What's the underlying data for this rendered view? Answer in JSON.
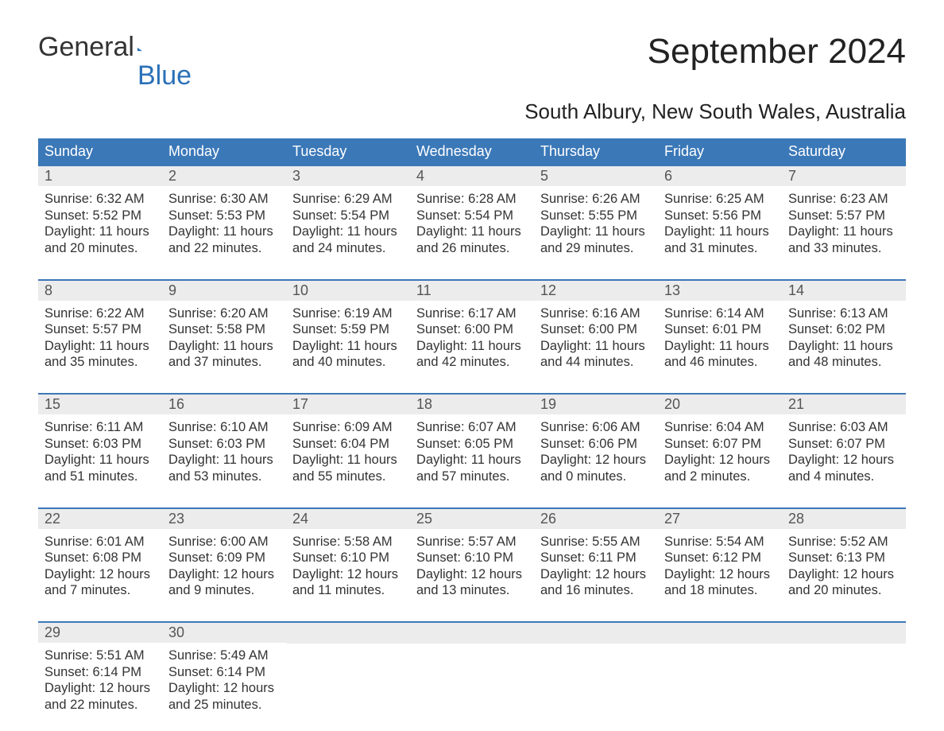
{
  "logo": {
    "general": "General",
    "blue": "Blue"
  },
  "title": "September 2024",
  "subtitle": "South Albury, New South Wales, Australia",
  "colors": {
    "header_bg": "#3b78b8",
    "header_text": "#ffffff",
    "daynum_bg": "#ececec",
    "daynum_text": "#555555",
    "body_text": "#333333",
    "rule": "#3b78b8",
    "logo_blue": "#2b71b8",
    "page_bg": "#ffffff"
  },
  "dayNames": [
    "Sunday",
    "Monday",
    "Tuesday",
    "Wednesday",
    "Thursday",
    "Friday",
    "Saturday"
  ],
  "weeks": [
    [
      {
        "n": "1",
        "sunrise": "Sunrise: 6:32 AM",
        "sunset": "Sunset: 5:52 PM",
        "d1": "Daylight: 11 hours",
        "d2": "and 20 minutes."
      },
      {
        "n": "2",
        "sunrise": "Sunrise: 6:30 AM",
        "sunset": "Sunset: 5:53 PM",
        "d1": "Daylight: 11 hours",
        "d2": "and 22 minutes."
      },
      {
        "n": "3",
        "sunrise": "Sunrise: 6:29 AM",
        "sunset": "Sunset: 5:54 PM",
        "d1": "Daylight: 11 hours",
        "d2": "and 24 minutes."
      },
      {
        "n": "4",
        "sunrise": "Sunrise: 6:28 AM",
        "sunset": "Sunset: 5:54 PM",
        "d1": "Daylight: 11 hours",
        "d2": "and 26 minutes."
      },
      {
        "n": "5",
        "sunrise": "Sunrise: 6:26 AM",
        "sunset": "Sunset: 5:55 PM",
        "d1": "Daylight: 11 hours",
        "d2": "and 29 minutes."
      },
      {
        "n": "6",
        "sunrise": "Sunrise: 6:25 AM",
        "sunset": "Sunset: 5:56 PM",
        "d1": "Daylight: 11 hours",
        "d2": "and 31 minutes."
      },
      {
        "n": "7",
        "sunrise": "Sunrise: 6:23 AM",
        "sunset": "Sunset: 5:57 PM",
        "d1": "Daylight: 11 hours",
        "d2": "and 33 minutes."
      }
    ],
    [
      {
        "n": "8",
        "sunrise": "Sunrise: 6:22 AM",
        "sunset": "Sunset: 5:57 PM",
        "d1": "Daylight: 11 hours",
        "d2": "and 35 minutes."
      },
      {
        "n": "9",
        "sunrise": "Sunrise: 6:20 AM",
        "sunset": "Sunset: 5:58 PM",
        "d1": "Daylight: 11 hours",
        "d2": "and 37 minutes."
      },
      {
        "n": "10",
        "sunrise": "Sunrise: 6:19 AM",
        "sunset": "Sunset: 5:59 PM",
        "d1": "Daylight: 11 hours",
        "d2": "and 40 minutes."
      },
      {
        "n": "11",
        "sunrise": "Sunrise: 6:17 AM",
        "sunset": "Sunset: 6:00 PM",
        "d1": "Daylight: 11 hours",
        "d2": "and 42 minutes."
      },
      {
        "n": "12",
        "sunrise": "Sunrise: 6:16 AM",
        "sunset": "Sunset: 6:00 PM",
        "d1": "Daylight: 11 hours",
        "d2": "and 44 minutes."
      },
      {
        "n": "13",
        "sunrise": "Sunrise: 6:14 AM",
        "sunset": "Sunset: 6:01 PM",
        "d1": "Daylight: 11 hours",
        "d2": "and 46 minutes."
      },
      {
        "n": "14",
        "sunrise": "Sunrise: 6:13 AM",
        "sunset": "Sunset: 6:02 PM",
        "d1": "Daylight: 11 hours",
        "d2": "and 48 minutes."
      }
    ],
    [
      {
        "n": "15",
        "sunrise": "Sunrise: 6:11 AM",
        "sunset": "Sunset: 6:03 PM",
        "d1": "Daylight: 11 hours",
        "d2": "and 51 minutes."
      },
      {
        "n": "16",
        "sunrise": "Sunrise: 6:10 AM",
        "sunset": "Sunset: 6:03 PM",
        "d1": "Daylight: 11 hours",
        "d2": "and 53 minutes."
      },
      {
        "n": "17",
        "sunrise": "Sunrise: 6:09 AM",
        "sunset": "Sunset: 6:04 PM",
        "d1": "Daylight: 11 hours",
        "d2": "and 55 minutes."
      },
      {
        "n": "18",
        "sunrise": "Sunrise: 6:07 AM",
        "sunset": "Sunset: 6:05 PM",
        "d1": "Daylight: 11 hours",
        "d2": "and 57 minutes."
      },
      {
        "n": "19",
        "sunrise": "Sunrise: 6:06 AM",
        "sunset": "Sunset: 6:06 PM",
        "d1": "Daylight: 12 hours",
        "d2": "and 0 minutes."
      },
      {
        "n": "20",
        "sunrise": "Sunrise: 6:04 AM",
        "sunset": "Sunset: 6:07 PM",
        "d1": "Daylight: 12 hours",
        "d2": "and 2 minutes."
      },
      {
        "n": "21",
        "sunrise": "Sunrise: 6:03 AM",
        "sunset": "Sunset: 6:07 PM",
        "d1": "Daylight: 12 hours",
        "d2": "and 4 minutes."
      }
    ],
    [
      {
        "n": "22",
        "sunrise": "Sunrise: 6:01 AM",
        "sunset": "Sunset: 6:08 PM",
        "d1": "Daylight: 12 hours",
        "d2": "and 7 minutes."
      },
      {
        "n": "23",
        "sunrise": "Sunrise: 6:00 AM",
        "sunset": "Sunset: 6:09 PM",
        "d1": "Daylight: 12 hours",
        "d2": "and 9 minutes."
      },
      {
        "n": "24",
        "sunrise": "Sunrise: 5:58 AM",
        "sunset": "Sunset: 6:10 PM",
        "d1": "Daylight: 12 hours",
        "d2": "and 11 minutes."
      },
      {
        "n": "25",
        "sunrise": "Sunrise: 5:57 AM",
        "sunset": "Sunset: 6:10 PM",
        "d1": "Daylight: 12 hours",
        "d2": "and 13 minutes."
      },
      {
        "n": "26",
        "sunrise": "Sunrise: 5:55 AM",
        "sunset": "Sunset: 6:11 PM",
        "d1": "Daylight: 12 hours",
        "d2": "and 16 minutes."
      },
      {
        "n": "27",
        "sunrise": "Sunrise: 5:54 AM",
        "sunset": "Sunset: 6:12 PM",
        "d1": "Daylight: 12 hours",
        "d2": "and 18 minutes."
      },
      {
        "n": "28",
        "sunrise": "Sunrise: 5:52 AM",
        "sunset": "Sunset: 6:13 PM",
        "d1": "Daylight: 12 hours",
        "d2": "and 20 minutes."
      }
    ],
    [
      {
        "n": "29",
        "sunrise": "Sunrise: 5:51 AM",
        "sunset": "Sunset: 6:14 PM",
        "d1": "Daylight: 12 hours",
        "d2": "and 22 minutes."
      },
      {
        "n": "30",
        "sunrise": "Sunrise: 5:49 AM",
        "sunset": "Sunset: 6:14 PM",
        "d1": "Daylight: 12 hours",
        "d2": "and 25 minutes."
      },
      null,
      null,
      null,
      null,
      null
    ]
  ]
}
